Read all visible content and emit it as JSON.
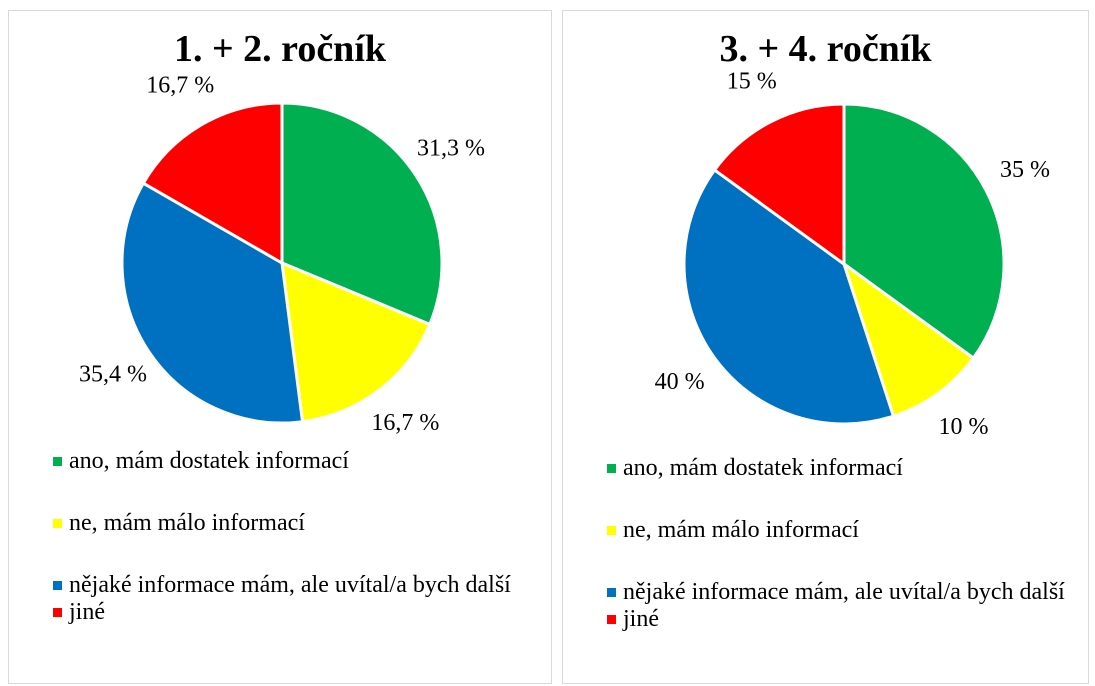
{
  "chart_data": [
    {
      "type": "pie",
      "title": "1. + 2. ročník",
      "categories": [
        "ano, mám dostatek informací",
        "ne, mám málo informací",
        "nějaké informace mám, ale uvítal/a bych další",
        "jiné"
      ],
      "values": [
        31.3,
        16.7,
        35.4,
        16.7
      ],
      "value_labels": [
        "31,3 %",
        "16,7 %",
        "35,4 %",
        "16,7 %"
      ],
      "colors": [
        "#00b050",
        "#ffff00",
        "#0070c0",
        "#ff0000"
      ]
    },
    {
      "type": "pie",
      "title": "3. + 4. ročník",
      "categories": [
        "ano, mám dostatek informací",
        "ne, mám málo informací",
        "nějaké informace mám, ale uvítal/a bych další",
        "jiné"
      ],
      "values": [
        35,
        10,
        40,
        15
      ],
      "value_labels": [
        "35 %",
        "10 %",
        "40 %",
        "15 %"
      ],
      "colors": [
        "#00b050",
        "#ffff00",
        "#0070c0",
        "#ff0000"
      ]
    }
  ]
}
